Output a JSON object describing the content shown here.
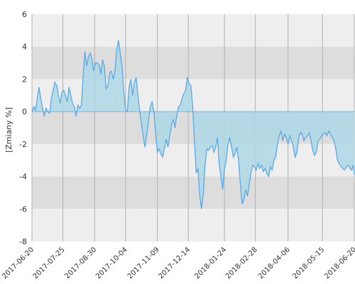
{
  "chart_data": {
    "type": "area",
    "ylabel": "[Zmiany %]",
    "ylim": [
      -8,
      6
    ],
    "xlim": [
      "2017-06-20",
      "2018-06-20"
    ],
    "y_ticks": [
      6,
      4,
      2,
      0,
      -2,
      -4,
      -6,
      -8
    ],
    "x_ticks": [
      "2017-06-20",
      "2017-07-25",
      "2017-08-30",
      "2017-10-04",
      "2017-11-09",
      "2017-12-14",
      "2018-01-24",
      "2018-02-28",
      "2018-04-06",
      "2018-05-15",
      "2018-06-20"
    ],
    "grid": true,
    "colors": {
      "line": "#5aa9e6",
      "fill": "#add8e6",
      "band_light": "#eeeeee",
      "band_dark": "#dddddd",
      "vgrid": "#b0b0b0"
    },
    "series": [
      {
        "x": [
          "2017-06-20",
          "2017-06-22",
          "2017-06-24",
          "2017-06-26",
          "2017-06-28",
          "2017-06-30",
          "2017-07-02",
          "2017-07-04",
          "2017-07-06",
          "2017-07-08",
          "2017-07-10",
          "2017-07-12",
          "2017-07-14",
          "2017-07-16",
          "2017-07-18",
          "2017-07-20",
          "2017-07-22",
          "2017-07-24",
          "2017-07-26",
          "2017-07-28",
          "2017-07-30",
          "2017-08-01",
          "2017-08-03",
          "2017-08-05",
          "2017-08-07",
          "2017-08-09",
          "2017-08-11",
          "2017-08-13",
          "2017-08-15",
          "2017-08-17",
          "2017-08-19",
          "2017-08-21",
          "2017-08-23",
          "2017-08-25",
          "2017-08-27",
          "2017-08-29",
          "2017-08-31",
          "2017-09-02",
          "2017-09-04",
          "2017-09-06",
          "2017-09-08",
          "2017-09-10",
          "2017-09-12",
          "2017-09-14",
          "2017-09-16",
          "2017-09-18",
          "2017-09-20",
          "2017-09-22",
          "2017-09-24",
          "2017-09-26",
          "2017-09-28",
          "2017-09-30",
          "2017-10-02",
          "2017-10-04",
          "2017-10-06",
          "2017-10-08",
          "2017-10-10",
          "2017-10-12",
          "2017-10-14",
          "2017-10-16",
          "2017-10-18",
          "2017-10-20",
          "2017-10-22",
          "2017-10-24",
          "2017-10-26",
          "2017-10-28",
          "2017-10-30",
          "2017-11-01",
          "2017-11-03",
          "2017-11-05",
          "2017-11-07",
          "2017-11-09",
          "2017-11-11",
          "2017-11-13",
          "2017-11-15",
          "2017-11-17",
          "2017-11-19",
          "2017-11-21",
          "2017-11-23",
          "2017-11-25",
          "2017-11-27",
          "2017-11-29",
          "2017-12-01",
          "2017-12-03",
          "2017-12-05",
          "2017-12-07",
          "2017-12-09",
          "2017-12-11",
          "2017-12-13",
          "2017-12-15",
          "2017-12-17",
          "2017-12-19",
          "2017-12-21",
          "2017-12-23",
          "2017-12-25",
          "2017-12-27",
          "2017-12-29",
          "2017-12-31",
          "2018-01-02",
          "2018-01-04",
          "2018-01-06",
          "2018-01-08",
          "2018-01-10",
          "2018-01-12",
          "2018-01-14",
          "2018-01-16",
          "2018-01-18",
          "2018-01-20",
          "2018-01-22",
          "2018-01-24",
          "2018-01-26",
          "2018-01-28",
          "2018-01-30",
          "2018-02-01",
          "2018-02-03",
          "2018-02-05",
          "2018-02-07",
          "2018-02-09",
          "2018-02-11",
          "2018-02-13",
          "2018-02-15",
          "2018-02-17",
          "2018-02-19",
          "2018-02-21",
          "2018-02-23",
          "2018-02-25",
          "2018-02-27",
          "2018-03-01",
          "2018-03-03",
          "2018-03-05",
          "2018-03-07",
          "2018-03-09",
          "2018-03-11",
          "2018-03-13",
          "2018-03-15",
          "2018-03-17",
          "2018-03-19",
          "2018-03-21",
          "2018-03-23",
          "2018-03-25",
          "2018-03-27",
          "2018-03-29",
          "2018-03-31",
          "2018-04-02",
          "2018-04-04",
          "2018-04-06",
          "2018-04-08",
          "2018-04-10",
          "2018-04-12",
          "2018-04-14",
          "2018-04-16",
          "2018-04-18",
          "2018-04-20",
          "2018-04-22",
          "2018-04-24",
          "2018-04-26",
          "2018-04-28",
          "2018-04-30",
          "2018-05-02",
          "2018-05-04",
          "2018-05-06",
          "2018-05-08",
          "2018-05-10",
          "2018-05-12",
          "2018-05-14",
          "2018-05-16",
          "2018-05-18",
          "2018-05-20",
          "2018-05-22",
          "2018-05-24",
          "2018-05-26",
          "2018-05-28",
          "2018-05-30",
          "2018-06-01",
          "2018-06-03",
          "2018-06-05",
          "2018-06-07",
          "2018-06-09",
          "2018-06-11",
          "2018-06-13",
          "2018-06-15",
          "2018-06-17",
          "2018-06-19",
          "2018-06-20"
        ],
        "y": [
          0,
          0.3,
          0.1,
          0.8,
          1.5,
          0.8,
          0.2,
          -0.3,
          0.2,
          0.0,
          -0.1,
          0.8,
          1.3,
          1.8,
          1.6,
          1.0,
          0.5,
          1.2,
          1.3,
          1.0,
          0.6,
          1.5,
          1.0,
          0.5,
          0.3,
          -0.3,
          0.4,
          0.2,
          0.4,
          2.2,
          3.7,
          2.8,
          3.4,
          3.6,
          3.2,
          2.5,
          3.0,
          3.0,
          2.9,
          2.3,
          3.2,
          2.8,
          1.4,
          1.6,
          2.4,
          2.5,
          2.0,
          2.5,
          3.8,
          4.4,
          3.6,
          2.8,
          1.2,
          0.1,
          0.0,
          1.5,
          2.0,
          1.0,
          1.8,
          2.1,
          1.0,
          0.0,
          -0.8,
          -1.5,
          -2.2,
          -1.4,
          -0.6,
          0.3,
          0.6,
          0.0,
          -1.3,
          -2.5,
          -2.3,
          -2.6,
          -2.8,
          -2.3,
          -1.7,
          -2.2,
          -1.5,
          -0.8,
          -0.5,
          -1.0,
          -0.2,
          0.3,
          0.4,
          0.8,
          1.1,
          1.3,
          2.1,
          1.7,
          1.6,
          0.3,
          -1.8,
          -3.8,
          -3.5,
          -5.2,
          -6.0,
          -5.1,
          -3.3,
          -2.3,
          -2.4,
          -2.2,
          -2.1,
          -2.5,
          -2.2,
          -1.6,
          -3.2,
          -4.0,
          -4.8,
          -3.5,
          -3.0,
          -2.0,
          -1.6,
          -2.2,
          -2.8,
          -2.6,
          -2.2,
          -3.0,
          -4.5,
          -5.7,
          -5.4,
          -4.8,
          -5.2,
          -4.5,
          -3.8,
          -3.3,
          -3.4,
          -3.6,
          -3.2,
          -3.5,
          -3.3,
          -3.7,
          -3.5,
          -3.8,
          -4.0,
          -3.4,
          -3.6,
          -3.0,
          -2.8,
          -2.0,
          -1.5,
          -1.2,
          -1.8,
          -1.4,
          -1.6,
          -2.0,
          -1.5,
          -1.8,
          -2.2,
          -2.8,
          -2.5,
          -1.6,
          -1.3,
          -1.4,
          -1.8,
          -1.6,
          -1.5,
          -1.3,
          -1.8,
          -2.4,
          -2.7,
          -2.5,
          -1.8,
          -1.7,
          -1.5,
          -1.4,
          -1.3,
          -1.5,
          -1.2,
          -1.4,
          -1.6,
          -1.8,
          -2.3,
          -3.0,
          -3.2,
          -3.4,
          -3.5,
          -3.6,
          -3.4,
          -3.3,
          -3.5,
          -3.6,
          -3.3,
          -3.9
        ]
      }
    ]
  }
}
